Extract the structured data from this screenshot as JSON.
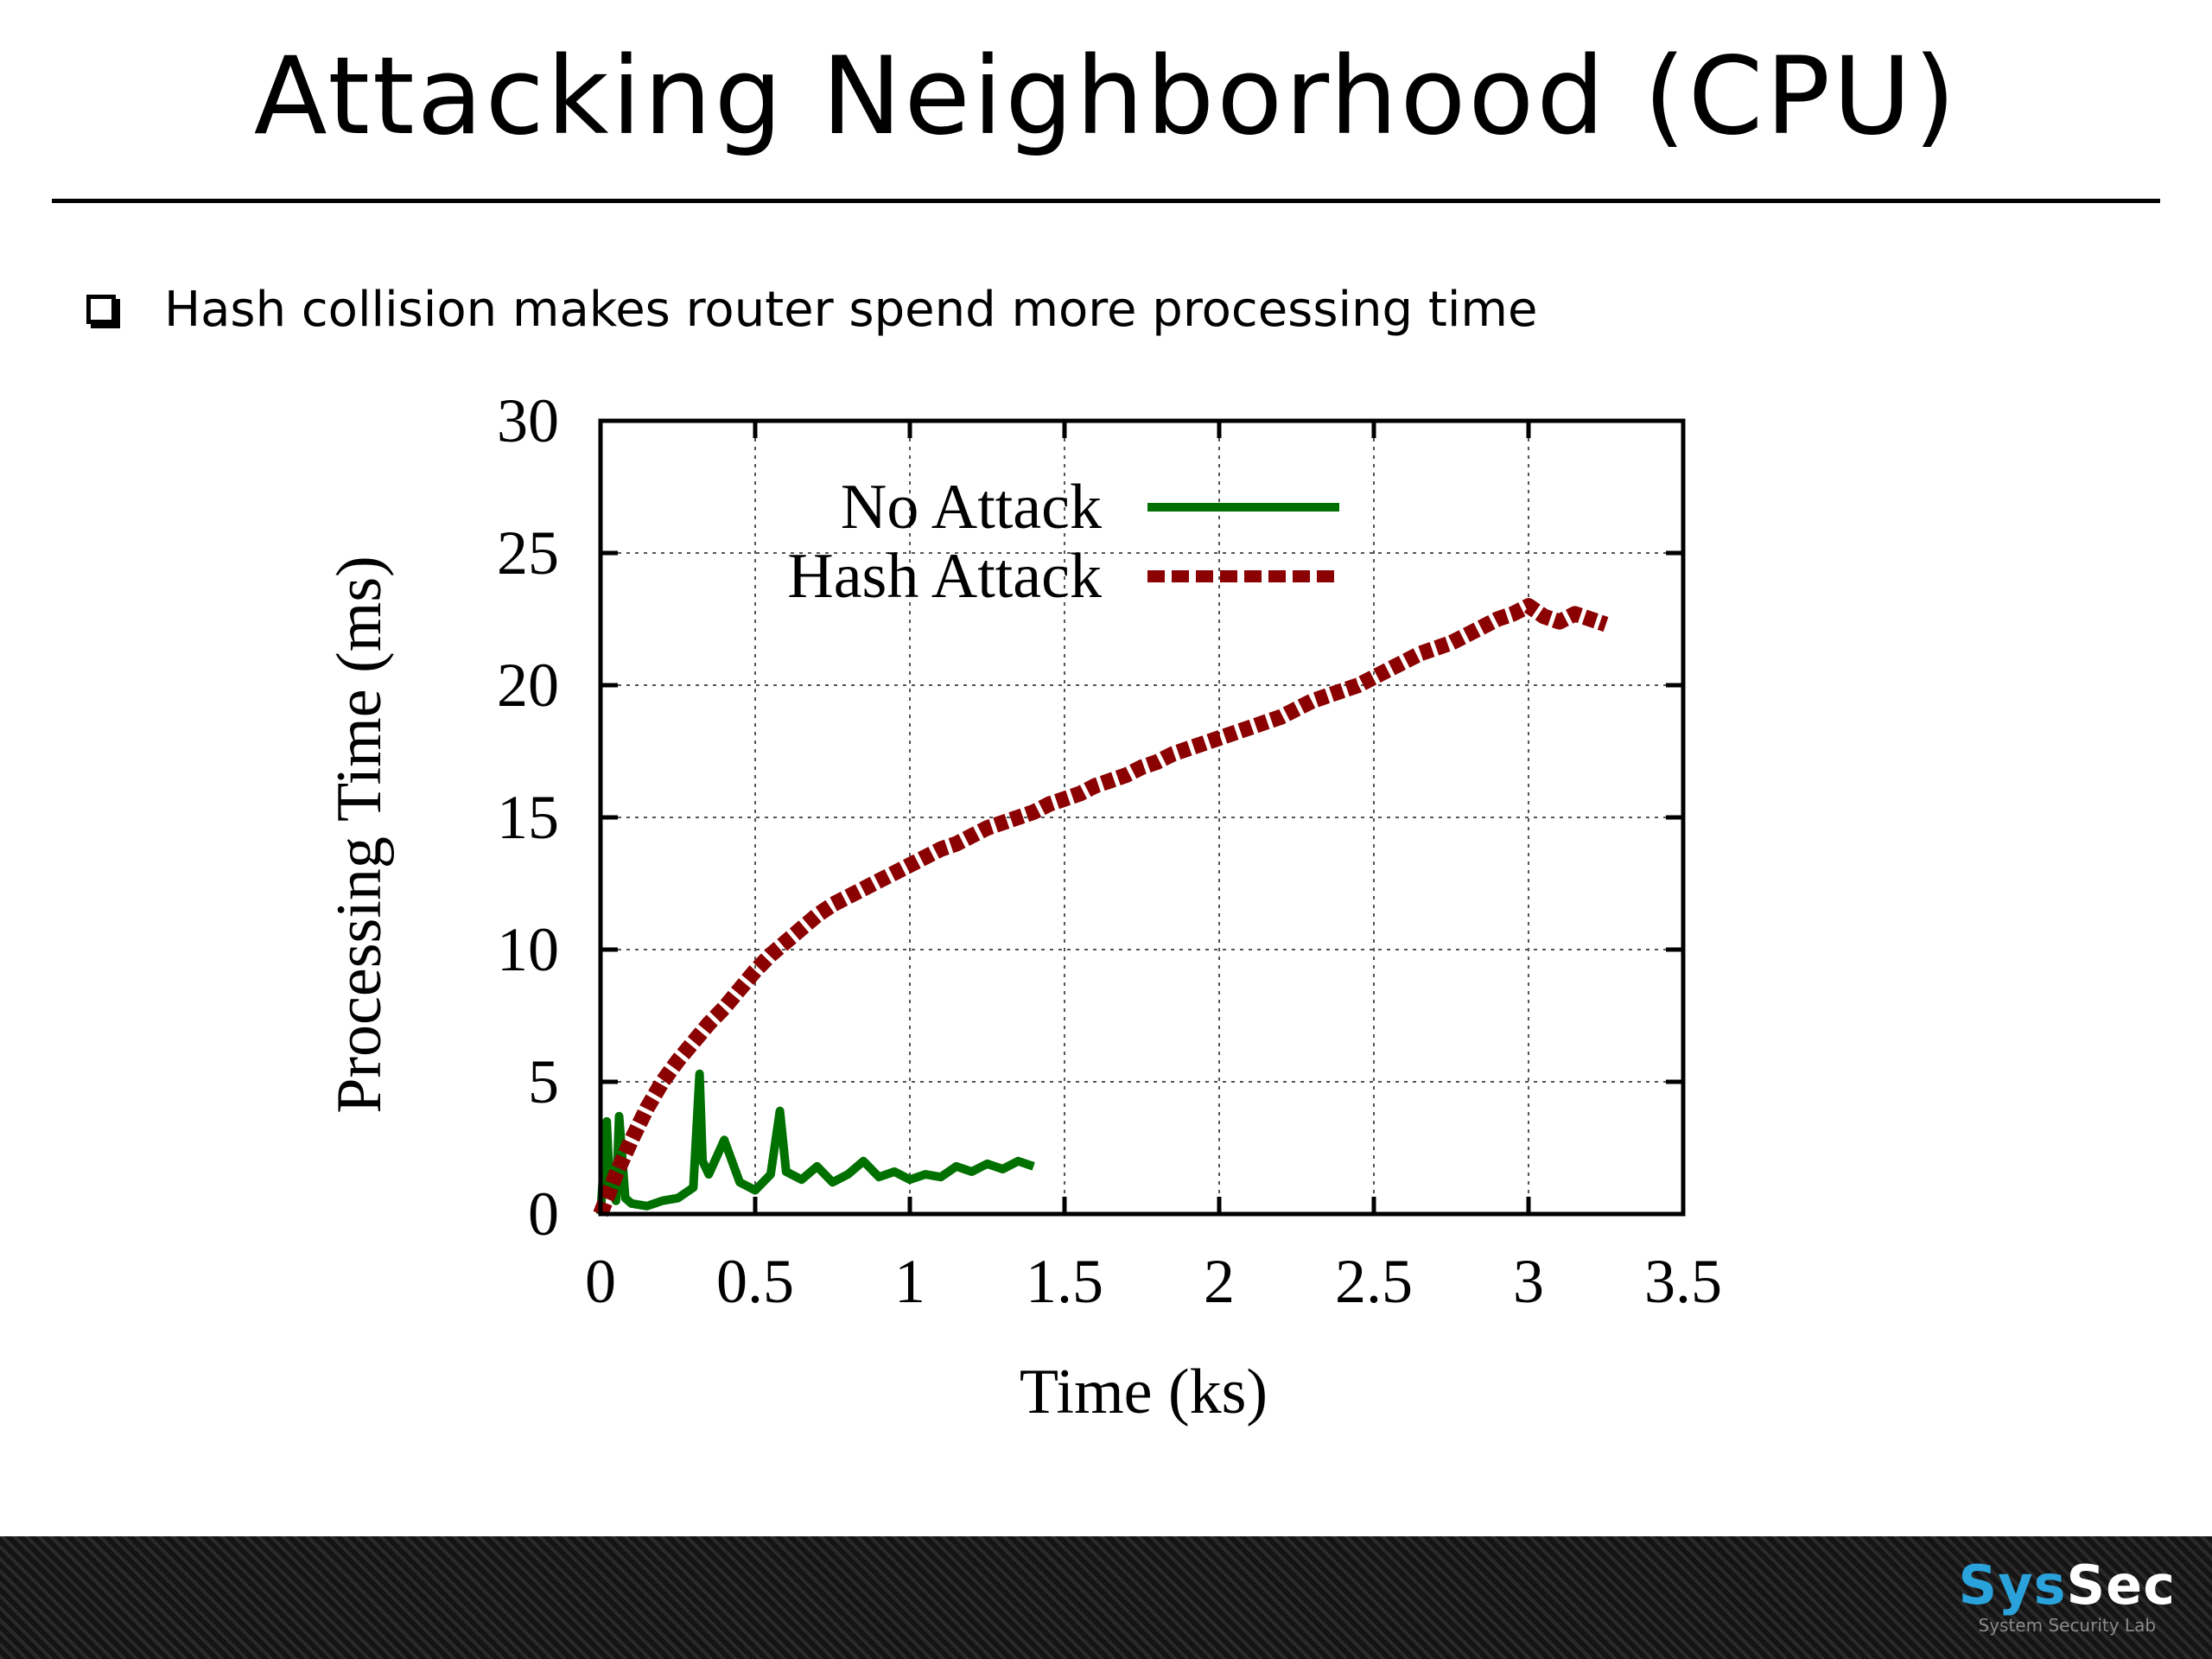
{
  "slide": {
    "title": "Attacking Neighborhood (CPU)",
    "bullet": "Hash collision makes router spend more processing time"
  },
  "footer": {
    "logo_sys": "Sys",
    "logo_sec": "Sec",
    "logo_subtitle": "System Security Lab"
  },
  "colors": {
    "no_attack": "#007000",
    "hash_attack": "#8b0000",
    "footer_bg": "#1c1c1c",
    "logo_accent": "#2aa3dc"
  },
  "chart_data": {
    "type": "line",
    "xlabel": "Time (ks)",
    "ylabel": "Processing Time (ms)",
    "xlim": [
      0,
      3.5
    ],
    "ylim": [
      0,
      30
    ],
    "xticks": [
      "0",
      "0.5",
      "1",
      "1.5",
      "2",
      "2.5",
      "3",
      "3.5"
    ],
    "yticks": [
      "0",
      "5",
      "10",
      "15",
      "20",
      "25",
      "30"
    ],
    "grid": true,
    "legend_position": "top-left",
    "series": [
      {
        "name": "No Attack",
        "style": "solid",
        "color": "#007000",
        "x": [
          0,
          0.02,
          0.03,
          0.05,
          0.06,
          0.08,
          0.1,
          0.15,
          0.2,
          0.25,
          0.3,
          0.32,
          0.33,
          0.35,
          0.4,
          0.45,
          0.5,
          0.55,
          0.58,
          0.6,
          0.65,
          0.7,
          0.75,
          0.8,
          0.85,
          0.9,
          0.95,
          1.0,
          1.05,
          1.1,
          1.15,
          1.2,
          1.25,
          1.3,
          1.35,
          1.4
        ],
        "y": [
          0,
          3.5,
          1.0,
          0.5,
          3.7,
          0.6,
          0.4,
          0.3,
          0.5,
          0.6,
          1.0,
          5.3,
          2.0,
          1.5,
          2.8,
          1.2,
          0.9,
          1.5,
          3.9,
          1.6,
          1.3,
          1.8,
          1.2,
          1.5,
          2.0,
          1.4,
          1.6,
          1.3,
          1.5,
          1.4,
          1.8,
          1.6,
          1.9,
          1.7,
          2.0,
          1.8
        ]
      },
      {
        "name": "Hash Attack",
        "style": "dashed",
        "color": "#8b0000",
        "x": [
          0,
          0.05,
          0.1,
          0.15,
          0.2,
          0.25,
          0.3,
          0.35,
          0.4,
          0.45,
          0.5,
          0.55,
          0.6,
          0.65,
          0.7,
          0.75,
          0.8,
          0.85,
          0.9,
          0.95,
          1.0,
          1.05,
          1.1,
          1.15,
          1.2,
          1.25,
          1.3,
          1.35,
          1.4,
          1.45,
          1.5,
          1.55,
          1.6,
          1.65,
          1.7,
          1.75,
          1.8,
          1.85,
          1.9,
          1.95,
          2.0,
          2.05,
          2.1,
          2.15,
          2.2,
          2.25,
          2.3,
          2.35,
          2.4,
          2.45,
          2.5,
          2.55,
          2.6,
          2.65,
          2.7,
          2.75,
          2.8,
          2.85,
          2.9,
          2.95,
          3.0,
          3.05,
          3.1,
          3.15,
          3.2,
          3.25
        ],
        "y": [
          0,
          1.5,
          2.8,
          4.0,
          5.0,
          5.8,
          6.5,
          7.2,
          7.8,
          8.5,
          9.2,
          9.8,
          10.3,
          10.8,
          11.3,
          11.7,
          12.0,
          12.3,
          12.6,
          12.9,
          13.2,
          13.5,
          13.8,
          14.0,
          14.3,
          14.6,
          14.8,
          15.0,
          15.2,
          15.5,
          15.7,
          15.9,
          16.2,
          16.4,
          16.6,
          16.9,
          17.1,
          17.4,
          17.6,
          17.8,
          18.0,
          18.2,
          18.4,
          18.6,
          18.8,
          19.1,
          19.4,
          19.6,
          19.8,
          20.0,
          20.3,
          20.6,
          20.9,
          21.2,
          21.4,
          21.6,
          21.9,
          22.2,
          22.5,
          22.7,
          23.0,
          22.6,
          22.4,
          22.7,
          22.5,
          22.3
        ]
      }
    ]
  }
}
